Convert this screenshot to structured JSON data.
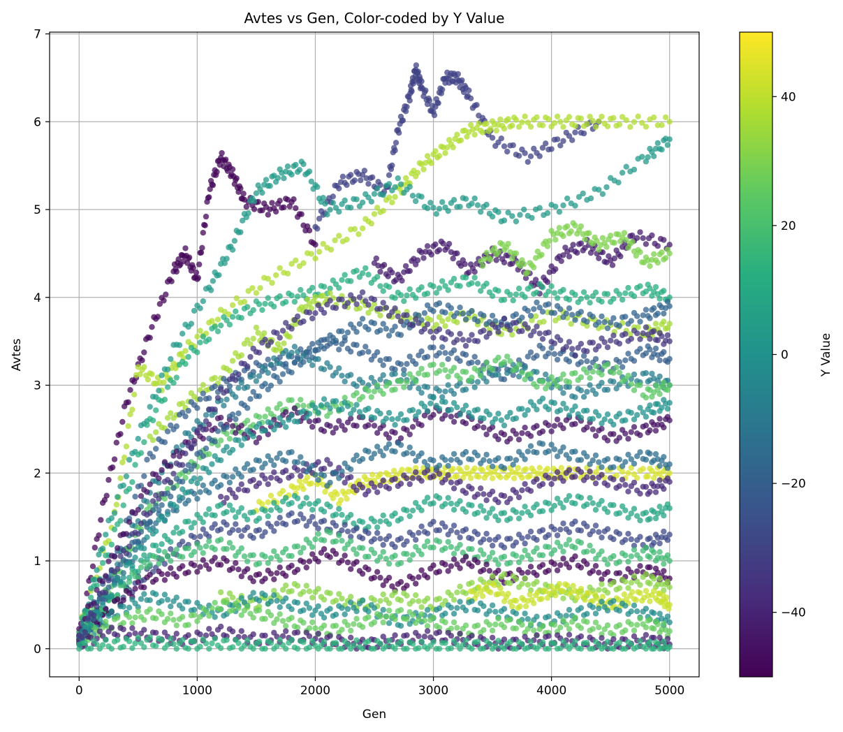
{
  "chart_data": {
    "type": "scatter",
    "title": "Avtes vs Gen, Color-coded by Y Value",
    "xlabel": "Gen",
    "ylabel": "Avtes",
    "xlim": [
      -250,
      5250
    ],
    "ylim": [
      -0.32,
      7.02
    ],
    "xticks": [
      0,
      1000,
      2000,
      3000,
      4000,
      5000
    ],
    "yticks": [
      0,
      1,
      2,
      3,
      4,
      5,
      6,
      7
    ],
    "grid": true,
    "colormap": "viridis",
    "colorbar": {
      "label": "Y Value",
      "range": [
        -50,
        50
      ],
      "ticks": [
        -40,
        -20,
        0,
        20,
        40
      ],
      "tick_labels": [
        "−40",
        "−20",
        "0",
        "20",
        "40"
      ]
    },
    "series": [
      {
        "c": -48,
        "x": [
          0,
          200,
          400,
          600,
          800,
          900,
          1000,
          1100,
          1200,
          1300,
          1400,
          1600,
          1800,
          2000
        ],
        "y": [
          0.1,
          1.6,
          2.8,
          3.6,
          4.3,
          4.5,
          4.2,
          5.2,
          5.6,
          5.4,
          5.1,
          5.0,
          5.1,
          4.6
        ]
      },
      {
        "c": -30,
        "x": [
          2000,
          2200,
          2400,
          2600,
          2700,
          2800,
          2850,
          2900,
          3000,
          3100,
          3200,
          3300,
          3500,
          3800,
          4100,
          4400
        ],
        "y": [
          4.8,
          5.3,
          5.4,
          5.2,
          5.9,
          6.3,
          6.6,
          6.4,
          6.1,
          6.5,
          6.5,
          6.3,
          5.8,
          5.6,
          5.8,
          6.0
        ]
      },
      {
        "c": 38,
        "x": [
          0,
          300,
          500,
          700,
          900,
          1200,
          1600,
          2000,
          2400,
          2700,
          2900,
          3100,
          3300,
          3500,
          3700,
          4000,
          4300,
          4600,
          5000
        ],
        "y": [
          0.2,
          1.5,
          3.2,
          3.0,
          3.4,
          3.8,
          4.2,
          4.5,
          4.8,
          5.2,
          5.5,
          5.7,
          5.9,
          5.95,
          6.0,
          6.0,
          6.0,
          6.0,
          6.0
        ]
      },
      {
        "c": 4,
        "x": [
          0,
          200,
          500,
          800,
          1100,
          1300,
          1500,
          1700,
          1900,
          2100,
          2400,
          2700,
          3000,
          3300,
          3600,
          4000,
          4400,
          4800,
          5000
        ],
        "y": [
          0.1,
          1.2,
          2.4,
          3.4,
          4.1,
          4.6,
          5.2,
          5.4,
          5.5,
          5.0,
          5.1,
          5.3,
          5.0,
          5.1,
          4.9,
          5.0,
          5.2,
          5.6,
          5.8
        ]
      },
      {
        "c": -42,
        "x": [
          2500,
          2700,
          2900,
          3100,
          3300,
          3500,
          3700,
          3900,
          4100,
          4300,
          4500,
          4700,
          5000
        ],
        "y": [
          4.4,
          4.2,
          4.5,
          4.6,
          4.3,
          4.5,
          4.4,
          4.1,
          4.5,
          4.6,
          4.4,
          4.7,
          4.6
        ]
      },
      {
        "c": 30,
        "x": [
          3400,
          3600,
          3800,
          4000,
          4200,
          4400,
          4600,
          4800,
          5000
        ],
        "y": [
          4.4,
          4.6,
          4.3,
          4.7,
          4.8,
          4.6,
          4.7,
          4.4,
          4.5
        ]
      },
      {
        "c": 12,
        "x": [
          0,
          300,
          600,
          900,
          1200,
          1500,
          1800,
          2100,
          2400,
          2700,
          3000,
          3300,
          3600,
          3900,
          4200,
          4500,
          4800,
          5000
        ],
        "y": [
          0.2,
          1.3,
          2.6,
          3.3,
          3.7,
          3.9,
          4.0,
          4.1,
          4.3,
          4.0,
          4.1,
          4.2,
          4.0,
          4.1,
          4.0,
          4.0,
          4.1,
          4.0
        ]
      },
      {
        "c": 36,
        "x": [
          600,
          900,
          1200,
          1500,
          1700,
          1900,
          2100,
          2400,
          2700,
          3000,
          3300,
          3600,
          4000,
          4400,
          4800,
          5000
        ],
        "y": [
          2.4,
          2.8,
          3.1,
          3.6,
          3.4,
          3.9,
          4.0,
          3.9,
          3.8,
          3.7,
          3.8,
          3.6,
          3.8,
          3.7,
          3.6,
          3.7
        ]
      },
      {
        "c": -20,
        "x": [
          0,
          300,
          600,
          900,
          1200,
          1500,
          1800,
          2100,
          2400,
          2700,
          3000,
          3300,
          3600,
          3900,
          4200,
          4500,
          4800,
          5000
        ],
        "y": [
          0.1,
          1.0,
          2.2,
          2.7,
          3.0,
          3.2,
          3.3,
          3.5,
          3.4,
          3.2,
          3.4,
          3.3,
          3.1,
          3.4,
          3.3,
          3.2,
          3.4,
          3.3
        ]
      },
      {
        "c": -8,
        "x": [
          0,
          300,
          600,
          900,
          1200,
          1500,
          1800,
          2100,
          2400,
          2700,
          3000,
          3300,
          3600,
          3900,
          4200,
          4500,
          4800,
          5000
        ],
        "y": [
          0.1,
          0.9,
          1.8,
          2.4,
          2.8,
          3.1,
          3.4,
          3.2,
          3.0,
          3.1,
          2.9,
          3.0,
          3.2,
          3.1,
          2.9,
          3.0,
          3.1,
          3.0
        ]
      },
      {
        "c": 24,
        "x": [
          0,
          300,
          600,
          900,
          1200,
          1500,
          1800,
          2100,
          2400,
          2700,
          3000,
          3300,
          3600,
          3900,
          4200,
          4500,
          4800,
          5000
        ],
        "y": [
          0.1,
          0.8,
          1.6,
          2.0,
          2.4,
          2.6,
          2.8,
          2.7,
          2.9,
          3.0,
          3.2,
          3.1,
          3.3,
          3.0,
          3.1,
          3.2,
          2.9,
          3.0
        ]
      },
      {
        "c": -45,
        "x": [
          0,
          300,
          600,
          900,
          1200,
          1500,
          1800,
          2100,
          2400,
          2700,
          3000,
          3300,
          3600,
          3900,
          4200,
          4500,
          4800,
          5000
        ],
        "y": [
          0.2,
          1.1,
          1.9,
          2.3,
          2.6,
          2.4,
          2.7,
          2.5,
          2.6,
          2.4,
          2.7,
          2.6,
          2.4,
          2.5,
          2.6,
          2.4,
          2.5,
          2.6
        ]
      },
      {
        "c": 44,
        "x": [
          1500,
          1800,
          2000,
          2200,
          2400,
          2600,
          2800,
          3000,
          3200,
          3400,
          3600,
          3800,
          4000,
          4200,
          4500,
          4800,
          5000
        ],
        "y": [
          1.6,
          1.8,
          1.95,
          1.7,
          1.9,
          1.95,
          2.0,
          2.0,
          2.0,
          2.0,
          2.0,
          2.0,
          2.0,
          2.0,
          2.0,
          2.0,
          2.0
        ]
      },
      {
        "c": -38,
        "x": [
          1200,
          1500,
          1800,
          2100,
          2400,
          2700,
          3000,
          3300,
          3600,
          3900,
          4200,
          4500,
          4800,
          5000
        ],
        "y": [
          1.7,
          1.9,
          2.0,
          2.1,
          1.8,
          1.9,
          2.0,
          1.8,
          1.7,
          1.9,
          2.0,
          1.9,
          1.8,
          1.9
        ]
      },
      {
        "c": -14,
        "x": [
          0,
          300,
          600,
          900,
          1200,
          1500,
          1800,
          2100,
          2400,
          2700,
          3000,
          3300,
          3600,
          3900,
          4200,
          4500,
          4800,
          5000
        ],
        "y": [
          0.1,
          0.7,
          1.4,
          1.7,
          1.9,
          2.1,
          2.2,
          1.9,
          2.2,
          2.3,
          2.1,
          2.2,
          2.1,
          2.3,
          2.2,
          2.1,
          2.2,
          2.1
        ]
      },
      {
        "c": 8,
        "x": [
          0,
          300,
          600,
          900,
          1200,
          1500,
          1800,
          2100,
          2400,
          2700,
          3000,
          3300,
          3600,
          3900,
          4200,
          4500,
          4800,
          5000
        ],
        "y": [
          0.1,
          0.6,
          1.1,
          1.4,
          1.6,
          1.5,
          1.7,
          1.6,
          1.4,
          1.5,
          1.7,
          1.6,
          1.5,
          1.6,
          1.7,
          1.6,
          1.5,
          1.6
        ]
      },
      {
        "c": -28,
        "x": [
          0,
          300,
          600,
          900,
          1200,
          1500,
          1800,
          2100,
          2400,
          2700,
          3000,
          3300,
          3600,
          3900,
          4200,
          4500,
          4800,
          5000
        ],
        "y": [
          0.1,
          0.5,
          0.9,
          1.2,
          1.4,
          1.3,
          1.5,
          1.4,
          1.3,
          1.2,
          1.4,
          1.3,
          1.2,
          1.3,
          1.4,
          1.3,
          1.2,
          1.3
        ]
      },
      {
        "c": 18,
        "x": [
          0,
          300,
          600,
          900,
          1200,
          1500,
          1800,
          2100,
          2400,
          2700,
          3000,
          3300,
          3600,
          3900,
          4200,
          4500,
          4800,
          5000
        ],
        "y": [
          0.1,
          0.6,
          1.0,
          1.1,
          1.2,
          1.0,
          1.1,
          1.3,
          1.1,
          1.0,
          1.2,
          1.1,
          1.0,
          1.1,
          1.2,
          1.0,
          1.1,
          1.0
        ]
      },
      {
        "c": -48,
        "x": [
          0,
          300,
          600,
          900,
          1200,
          1500,
          1800,
          2100,
          2400,
          2700,
          3000,
          3300,
          3600,
          3900,
          4200,
          4500,
          4800,
          5000
        ],
        "y": [
          0.1,
          0.5,
          0.8,
          0.9,
          1.0,
          0.8,
          0.9,
          1.1,
          0.9,
          0.7,
          0.9,
          1.0,
          0.8,
          0.9,
          1.0,
          0.8,
          0.9,
          0.8
        ]
      },
      {
        "c": 32,
        "x": [
          1200,
          1500,
          1800,
          2100,
          2400,
          2700,
          3000,
          3300,
          3600,
          3900,
          4200,
          4500,
          4800,
          5000
        ],
        "y": [
          0.6,
          0.5,
          0.7,
          0.6,
          0.5,
          0.6,
          0.5,
          0.7,
          0.8,
          0.7,
          0.6,
          0.7,
          0.8,
          0.7
        ]
      },
      {
        "c": 42,
        "x": [
          3300,
          3500,
          3700,
          3900,
          4100,
          4300,
          4500,
          4700,
          4900,
          5000
        ],
        "y": [
          0.6,
          0.7,
          0.5,
          0.6,
          0.7,
          0.6,
          0.5,
          0.6,
          0.6,
          0.5
        ]
      },
      {
        "c": -2,
        "x": [
          0,
          300,
          600,
          900,
          1200,
          1500,
          1800,
          2100,
          2400,
          2700,
          3000,
          3300,
          3600,
          3900,
          4200,
          4500,
          4800,
          5000
        ],
        "y": [
          0.1,
          0.4,
          0.6,
          0.5,
          0.4,
          0.6,
          0.5,
          0.4,
          0.5,
          0.3,
          0.4,
          0.5,
          0.4,
          0.3,
          0.4,
          0.5,
          0.4,
          0.3
        ]
      },
      {
        "c": 26,
        "x": [
          0,
          300,
          600,
          900,
          1200,
          1500,
          1800,
          2100,
          2400,
          2700,
          3000,
          3300,
          3600,
          3900,
          4200,
          4500,
          4800,
          5000
        ],
        "y": [
          0.1,
          0.3,
          0.4,
          0.3,
          0.5,
          0.4,
          0.3,
          0.2,
          0.3,
          0.4,
          0.3,
          0.2,
          0.3,
          0.2,
          0.3,
          0.2,
          0.3,
          0.2
        ]
      },
      {
        "c": -40,
        "x": [
          0,
          300,
          600,
          900,
          1200,
          1500,
          1800,
          2100,
          2400,
          2700,
          3000,
          3300,
          3600,
          3900,
          4200,
          4500,
          4800,
          5000
        ],
        "y": [
          0.05,
          0.2,
          0.15,
          0.1,
          0.2,
          0.1,
          0.15,
          0.1,
          0.05,
          0.1,
          0.15,
          0.1,
          0.05,
          0.1,
          0.1,
          0.05,
          0.1,
          0.05
        ]
      },
      {
        "c": 14,
        "x": [
          0,
          300,
          600,
          900,
          1200,
          1500,
          1800,
          2100,
          2400,
          2700,
          3000,
          3300,
          3600,
          3900,
          4200,
          4500,
          4800,
          5000
        ],
        "y": [
          0.02,
          0.05,
          0.08,
          0.04,
          0.06,
          0.03,
          0.05,
          0.02,
          0.04,
          0.03,
          0.02,
          0.04,
          0.03,
          0.02,
          0.03,
          0.02,
          0.03,
          0.02
        ]
      },
      {
        "c": -18,
        "x": [
          0,
          300,
          600,
          900,
          1200,
          1500,
          1800,
          2100,
          2400,
          2700,
          3000,
          3300,
          3600,
          3900,
          4200,
          4500,
          4800,
          5000
        ],
        "y": [
          0.1,
          0.8,
          1.5,
          2.0,
          2.5,
          2.9,
          3.2,
          3.5,
          3.7,
          3.6,
          3.9,
          3.8,
          3.7,
          3.9,
          3.8,
          3.7,
          3.8,
          3.9
        ]
      },
      {
        "c": 0,
        "x": [
          0,
          300,
          600,
          900,
          1200,
          1500,
          1800,
          2100,
          2400,
          2700,
          3000,
          3300,
          3600,
          3900,
          4200,
          4500,
          4800,
          5000
        ],
        "y": [
          0.1,
          0.7,
          1.3,
          1.8,
          2.2,
          2.5,
          2.6,
          2.8,
          2.7,
          2.6,
          2.8,
          2.7,
          2.6,
          2.8,
          2.7,
          2.6,
          2.7,
          2.8
        ]
      },
      {
        "c": -34,
        "x": [
          0,
          300,
          600,
          900,
          1200,
          1500,
          1800,
          2100,
          2400,
          2700,
          3000,
          3300,
          3600,
          3900,
          4200,
          4500,
          4800,
          5000
        ],
        "y": [
          0.1,
          0.9,
          1.6,
          2.2,
          2.9,
          3.4,
          3.7,
          3.9,
          4.0,
          3.8,
          3.6,
          3.5,
          3.7,
          3.6,
          3.4,
          3.5,
          3.6,
          3.5
        ]
      }
    ]
  }
}
